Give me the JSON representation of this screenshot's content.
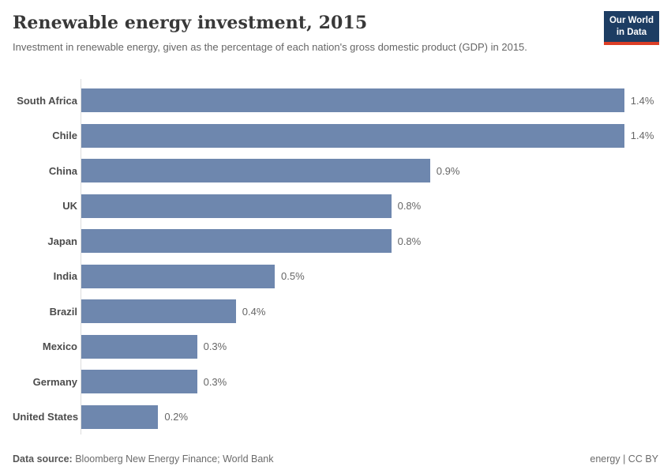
{
  "header": {
    "title": "Renewable energy investment, 2015",
    "subtitle": "Investment in renewable energy, given as the percentage of each nation's gross domestic product (GDP) in 2015.",
    "logo": {
      "line1": "Our World",
      "line2": "in Data",
      "bg_color": "#1d3d63",
      "accent_color": "#dc3e26"
    }
  },
  "chart_data": {
    "type": "bar",
    "orientation": "horizontal",
    "title": "Renewable energy investment, 2015",
    "subtitle": "Investment in renewable energy, given as the percentage of each nation's gross domestic product (GDP) in 2015.",
    "categories": [
      "South Africa",
      "Chile",
      "China",
      "UK",
      "Japan",
      "India",
      "Brazil",
      "Mexico",
      "Germany",
      "United States"
    ],
    "values": [
      1.4,
      1.4,
      0.9,
      0.8,
      0.8,
      0.5,
      0.4,
      0.3,
      0.3,
      0.2
    ],
    "value_labels": [
      "1.4%",
      "1.4%",
      "0.9%",
      "0.8%",
      "0.8%",
      "0.5%",
      "0.4%",
      "0.3%",
      "0.3%",
      "0.2%"
    ],
    "unit": "%",
    "xlim": [
      0,
      1.4
    ],
    "xlabel": "",
    "ylabel": "",
    "grid": false,
    "legend": false,
    "bar_color": "#6e87ae",
    "axis_color": "#dcdcdc"
  },
  "footer": {
    "datasource_label": "Data source:",
    "datasource_value": "Bloomberg New Energy Finance; World Bank",
    "right_text": "energy | CC BY"
  }
}
